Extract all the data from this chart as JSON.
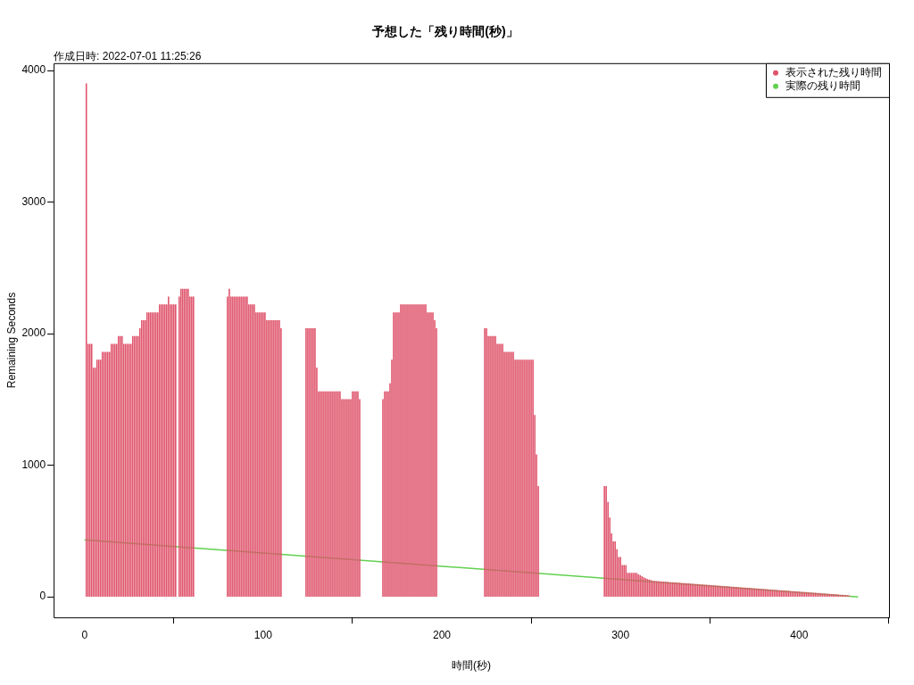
{
  "chart_data": {
    "type": "bar",
    "title": "予想した「残り時間(秒)」",
    "xlabel": "時間(秒)",
    "ylabel": "Remaining Seconds",
    "annotations": [
      "作成日時: 2022-07-01 11:25:26"
    ],
    "xlim": [
      -17.3,
      450.3
    ],
    "xticks": [
      0,
      100,
      200,
      300,
      400
    ],
    "ylim": [
      -156,
      4056
    ],
    "yticks": [
      0,
      1000,
      2000,
      3000,
      4000
    ],
    "grid": false,
    "legend": "top right",
    "series": [
      {
        "name": "表示された残り時間",
        "color": "#df536b",
        "x": [
          1,
          2,
          3,
          4,
          5,
          6,
          7,
          8,
          9,
          10,
          11,
          12,
          13,
          14,
          15,
          16,
          17,
          18,
          19,
          20,
          21,
          22,
          23,
          24,
          25,
          26,
          27,
          28,
          29,
          30,
          31,
          32,
          33,
          34,
          35,
          36,
          37,
          38,
          39,
          40,
          41,
          42,
          43,
          44,
          45,
          46,
          47,
          48,
          49,
          50,
          51,
          53,
          54,
          55,
          56,
          57,
          58,
          59,
          60,
          61,
          80,
          81,
          82,
          83,
          84,
          85,
          86,
          87,
          88,
          89,
          90,
          91,
          92,
          93,
          94,
          95,
          96,
          97,
          98,
          99,
          100,
          101,
          102,
          103,
          104,
          105,
          106,
          107,
          108,
          109,
          110,
          124,
          125,
          126,
          127,
          128,
          129,
          130,
          131,
          132,
          133,
          134,
          135,
          136,
          137,
          138,
          139,
          140,
          141,
          142,
          143,
          144,
          145,
          146,
          147,
          148,
          149,
          150,
          151,
          152,
          153,
          154,
          167,
          168,
          169,
          170,
          171,
          172,
          173,
          174,
          175,
          176,
          177,
          178,
          179,
          180,
          181,
          182,
          183,
          184,
          185,
          186,
          187,
          188,
          189,
          190,
          191,
          192,
          193,
          194,
          195,
          196,
          197,
          224,
          225,
          226,
          227,
          228,
          229,
          230,
          231,
          232,
          233,
          234,
          235,
          236,
          237,
          238,
          239,
          240,
          241,
          242,
          243,
          244,
          245,
          246,
          247,
          248,
          249,
          250,
          251,
          252,
          253,
          254,
          291,
          292,
          293,
          294,
          295,
          296,
          297,
          298,
          299,
          300,
          301,
          302,
          303,
          304,
          305,
          306,
          307,
          308,
          309,
          310,
          311,
          312,
          313,
          314,
          315,
          316,
          317,
          318,
          319,
          320,
          321,
          322,
          323,
          324,
          325,
          326,
          327,
          328,
          329,
          330,
          331,
          332,
          333,
          334,
          335,
          336,
          337,
          338,
          339,
          340,
          341,
          342,
          343,
          344,
          345,
          346,
          347,
          348,
          349,
          350,
          351,
          352,
          353,
          354,
          355,
          356,
          357,
          358,
          359,
          360,
          361,
          362,
          363,
          364,
          365,
          366,
          367,
          368,
          369,
          370,
          371,
          372,
          373,
          374,
          375,
          376,
          377,
          378,
          379,
          380,
          381,
          382,
          383,
          384,
          385,
          386,
          387,
          388,
          389,
          390,
          391,
          392,
          393,
          394,
          395,
          396,
          397,
          398,
          399,
          400,
          401,
          402,
          403,
          404,
          405,
          406,
          407,
          408,
          409,
          410,
          411,
          412,
          413,
          414,
          415,
          416,
          417,
          418,
          419,
          420,
          421,
          422,
          423,
          424,
          425,
          426,
          427,
          428
        ],
        "values": [
          3900,
          1920,
          1920,
          1920,
          1740,
          1740,
          1800,
          1800,
          1800,
          1860,
          1860,
          1860,
          1860,
          1860,
          1920,
          1920,
          1920,
          1920,
          1980,
          1980,
          1980,
          1920,
          1920,
          1920,
          1920,
          1920,
          1980,
          1980,
          1980,
          1980,
          2040,
          2100,
          2100,
          2100,
          2160,
          2160,
          2160,
          2160,
          2160,
          2160,
          2160,
          2220,
          2220,
          2220,
          2220,
          2220,
          2280,
          2220,
          2220,
          2220,
          2220,
          2280,
          2340,
          2340,
          2340,
          2340,
          2340,
          2280,
          2280,
          2280,
          2280,
          2340,
          2280,
          2280,
          2280,
          2280,
          2280,
          2280,
          2280,
          2280,
          2280,
          2280,
          2220,
          2220,
          2220,
          2220,
          2160,
          2160,
          2160,
          2160,
          2160,
          2160,
          2100,
          2100,
          2100,
          2100,
          2100,
          2100,
          2100,
          2100,
          2040,
          2040,
          2040,
          2040,
          2040,
          2040,
          2040,
          1740,
          1560,
          1560,
          1560,
          1560,
          1560,
          1560,
          1560,
          1560,
          1560,
          1560,
          1560,
          1560,
          1560,
          1500,
          1500,
          1500,
          1500,
          1500,
          1500,
          1560,
          1560,
          1560,
          1560,
          1500,
          1500,
          1560,
          1560,
          1560,
          1620,
          1800,
          2160,
          2160,
          2160,
          2160,
          2220,
          2220,
          2220,
          2220,
          2220,
          2220,
          2220,
          2220,
          2220,
          2220,
          2220,
          2220,
          2220,
          2220,
          2220,
          2160,
          2160,
          2160,
          2160,
          2100,
          2040,
          2040,
          2040,
          1980,
          1980,
          1980,
          1980,
          1980,
          1920,
          1920,
          1920,
          1920,
          1860,
          1860,
          1860,
          1860,
          1860,
          1860,
          1800,
          1800,
          1800,
          1800,
          1800,
          1800,
          1800,
          1800,
          1800,
          1800,
          1800,
          1380,
          1080,
          840,
          840,
          840,
          720,
          600,
          480,
          420,
          420,
          360,
          300,
          300,
          240,
          240,
          240,
          180,
          180,
          180,
          180,
          180,
          180,
          170,
          163,
          155,
          146,
          140,
          134,
          130,
          126,
          120,
          119,
          118,
          117,
          116,
          115,
          114,
          113,
          112,
          111,
          110,
          109,
          108,
          107,
          106,
          105,
          104,
          103,
          102,
          101,
          100,
          99,
          98,
          97,
          96,
          95,
          94,
          93,
          92,
          91,
          90,
          89,
          88,
          87,
          86,
          85,
          84,
          83,
          82,
          81,
          80,
          79,
          78,
          77,
          76,
          75,
          74,
          73,
          72,
          71,
          70,
          69,
          68,
          67,
          66,
          65,
          64,
          63,
          62,
          61,
          60,
          59,
          58,
          57,
          56,
          55,
          54,
          53,
          52,
          51,
          50,
          49,
          48,
          47,
          46,
          45,
          44,
          43,
          42,
          41,
          40,
          39,
          38,
          37,
          36,
          35,
          34,
          33,
          32,
          31,
          30,
          29,
          28,
          27,
          26,
          25,
          24,
          23,
          22,
          21,
          20,
          19,
          18,
          17,
          16,
          15,
          14,
          13,
          12,
          11,
          10
        ]
      },
      {
        "name": "実際の残り時間",
        "color": "#61d04f",
        "type": "line",
        "x": [
          0,
          433
        ],
        "values": [
          433,
          0
        ]
      }
    ]
  }
}
